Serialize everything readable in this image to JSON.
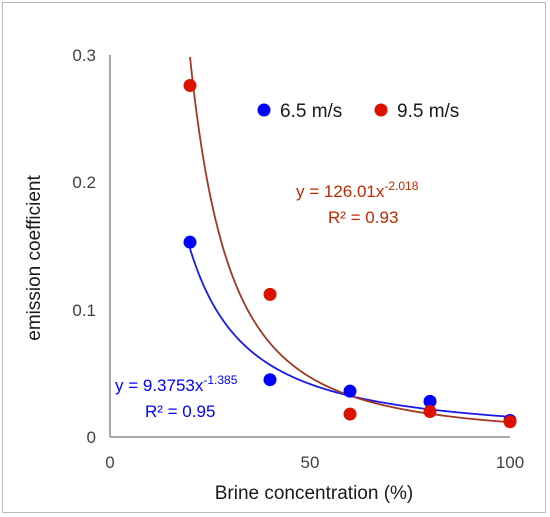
{
  "chart_data": {
    "type": "scatter",
    "xlabel": "Brine concentration (%)",
    "ylabel": "emission coefficient",
    "xlim": [
      0,
      100
    ],
    "ylim": [
      0,
      0.3
    ],
    "xticks": [
      "0",
      "50",
      "100"
    ],
    "yticks": [
      "0",
      "0.1",
      "0.2",
      "0.3"
    ],
    "grid": false,
    "legend": "top-right",
    "series": [
      {
        "name": "6.5 m/s",
        "color": "#0000ff",
        "x": [
          20,
          40,
          60,
          80,
          100
        ],
        "y": [
          0.153,
          0.045,
          0.036,
          0.028,
          0.013
        ],
        "trend": {
          "type": "power",
          "a": 9.3753,
          "b": -1.385,
          "equation_prefix": "y = 9.3753x",
          "equation_exponent": "-1.385",
          "r2_label": "R² = 0.95"
        }
      },
      {
        "name": "9.5 m/s",
        "color": "#dd1100",
        "x": [
          20,
          40,
          60,
          80,
          100
        ],
        "y": [
          0.276,
          0.112,
          0.018,
          0.02,
          0.012
        ],
        "trend": {
          "type": "power",
          "a": 126.01,
          "b": -2.018,
          "equation_prefix": "y = 126.01x",
          "equation_exponent": "-2.018",
          "r2_label": "R² = 0.93"
        }
      }
    ]
  }
}
